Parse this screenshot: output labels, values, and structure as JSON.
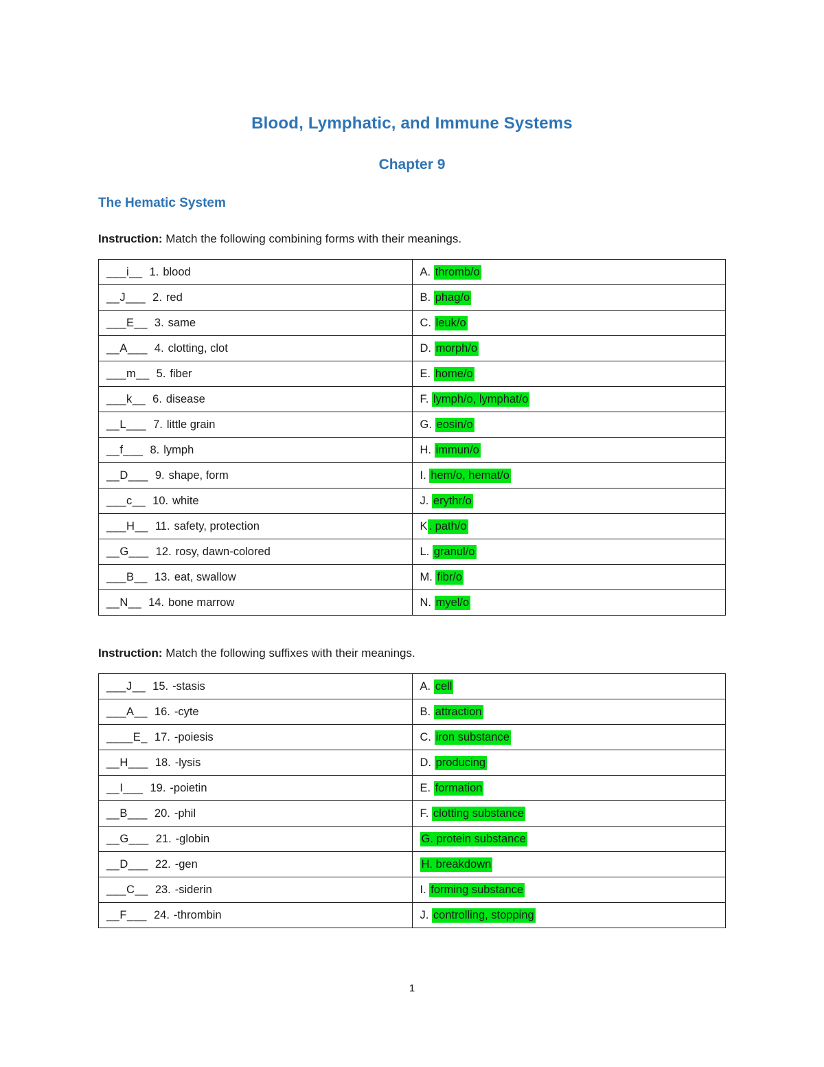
{
  "colors": {
    "accent": "#2e74b5",
    "highlight": "#00e614"
  },
  "page": {
    "title": "Blood, Lymphatic, and Immune Systems",
    "subtitle": "Chapter 9",
    "section_heading": "The Hematic System",
    "page_number": "1"
  },
  "instructions": {
    "first_label": "Instruction:",
    "first_text": " Match the following combining forms with their meanings.",
    "second_label": "Instruction:",
    "second_text": " Match the following suffixes with their meanings."
  },
  "table1": {
    "rows": [
      {
        "blank": "___i__",
        "num": "1.",
        "meaning": "blood",
        "letter": "A. ",
        "term": "thromb/o"
      },
      {
        "blank": "__J___",
        "num": "2.",
        "meaning": "red",
        "letter": "B. ",
        "term": "phag/o"
      },
      {
        "blank": "___E__",
        "num": "3.",
        "meaning": "same",
        "letter": "C. ",
        "term": "leuk/o"
      },
      {
        "blank": "__A___",
        "num": "4.",
        "meaning": "clotting, clot",
        "letter": "D. ",
        "term": "morph/o"
      },
      {
        "blank": "___m__",
        "num": "5.",
        "meaning": "fiber",
        "letter": "E. ",
        "term": "home/o"
      },
      {
        "blank": "___k__",
        "num": "6.",
        "meaning": "disease",
        "letter": "F. ",
        "term": "lymph/o, lymphat/o"
      },
      {
        "blank": "__L___",
        "num": "7.",
        "meaning": "little grain",
        "letter": "G. ",
        "term": "eosin/o"
      },
      {
        "blank": "__f___",
        "num": "8.",
        "meaning": "lymph",
        "letter": "H. ",
        "term": "immun/o"
      },
      {
        "blank": "__D___",
        "num": "9.",
        "meaning": "shape, form",
        "letter": "I. ",
        "term": "hem/o, hemat/o"
      },
      {
        "blank": "___c__",
        "num": "10.",
        "meaning": "white",
        "letter": "J. ",
        "term": "erythr/o"
      },
      {
        "blank": "___H__",
        "num": "11.",
        "meaning": "safety, protection",
        "letter": "K",
        "term": ". path/o"
      },
      {
        "blank": "__G___",
        "num": "12.",
        "meaning": "rosy, dawn-colored",
        "letter": "L. ",
        "term": "granul/o"
      },
      {
        "blank": "___B__",
        "num": "13.",
        "meaning": "eat, swallow",
        "letter": "M. ",
        "term": "fibr/o"
      },
      {
        "blank": "__N__",
        "num": "14.",
        "meaning": "bone marrow",
        "letter": "N. ",
        "term": "myel/o"
      }
    ]
  },
  "table2": {
    "rows": [
      {
        "blank": "___J__",
        "num": "15.",
        "meaning": "-stasis",
        "letter": "A. ",
        "term": "cell"
      },
      {
        "blank": "___A__",
        "num": "16.",
        "meaning": "-cyte",
        "letter": "B. ",
        "term": "attraction"
      },
      {
        "blank": "____E_",
        "num": "17.",
        "meaning": "-poiesis",
        "letter": "C. ",
        "term": "iron substance"
      },
      {
        "blank": "__H___",
        "num": "18.",
        "meaning": "-lysis",
        "letter": "D. ",
        "term": "producing"
      },
      {
        "blank": "__I___",
        "num": "19.",
        "meaning": "-poietin",
        "letter": "E. ",
        "term": "formation"
      },
      {
        "blank": "__B___",
        "num": "20.",
        "meaning": "-phil",
        "letter": "F. ",
        "term": "clotting substance"
      },
      {
        "blank": "__G___",
        "num": "21.",
        "meaning": "-globin",
        "letter": "",
        "term": "G. protein substance"
      },
      {
        "blank": "__D___",
        "num": "22.",
        "meaning": "-gen",
        "letter": "",
        "term": "H. breakdown"
      },
      {
        "blank": "___C__",
        "num": "23.",
        "meaning": "-siderin",
        "letter": "I. ",
        "term": "forming substance"
      },
      {
        "blank": "__F___",
        "num": "24.",
        "meaning": "-thrombin",
        "letter": "J. ",
        "term": "controlling, stopping"
      }
    ]
  }
}
